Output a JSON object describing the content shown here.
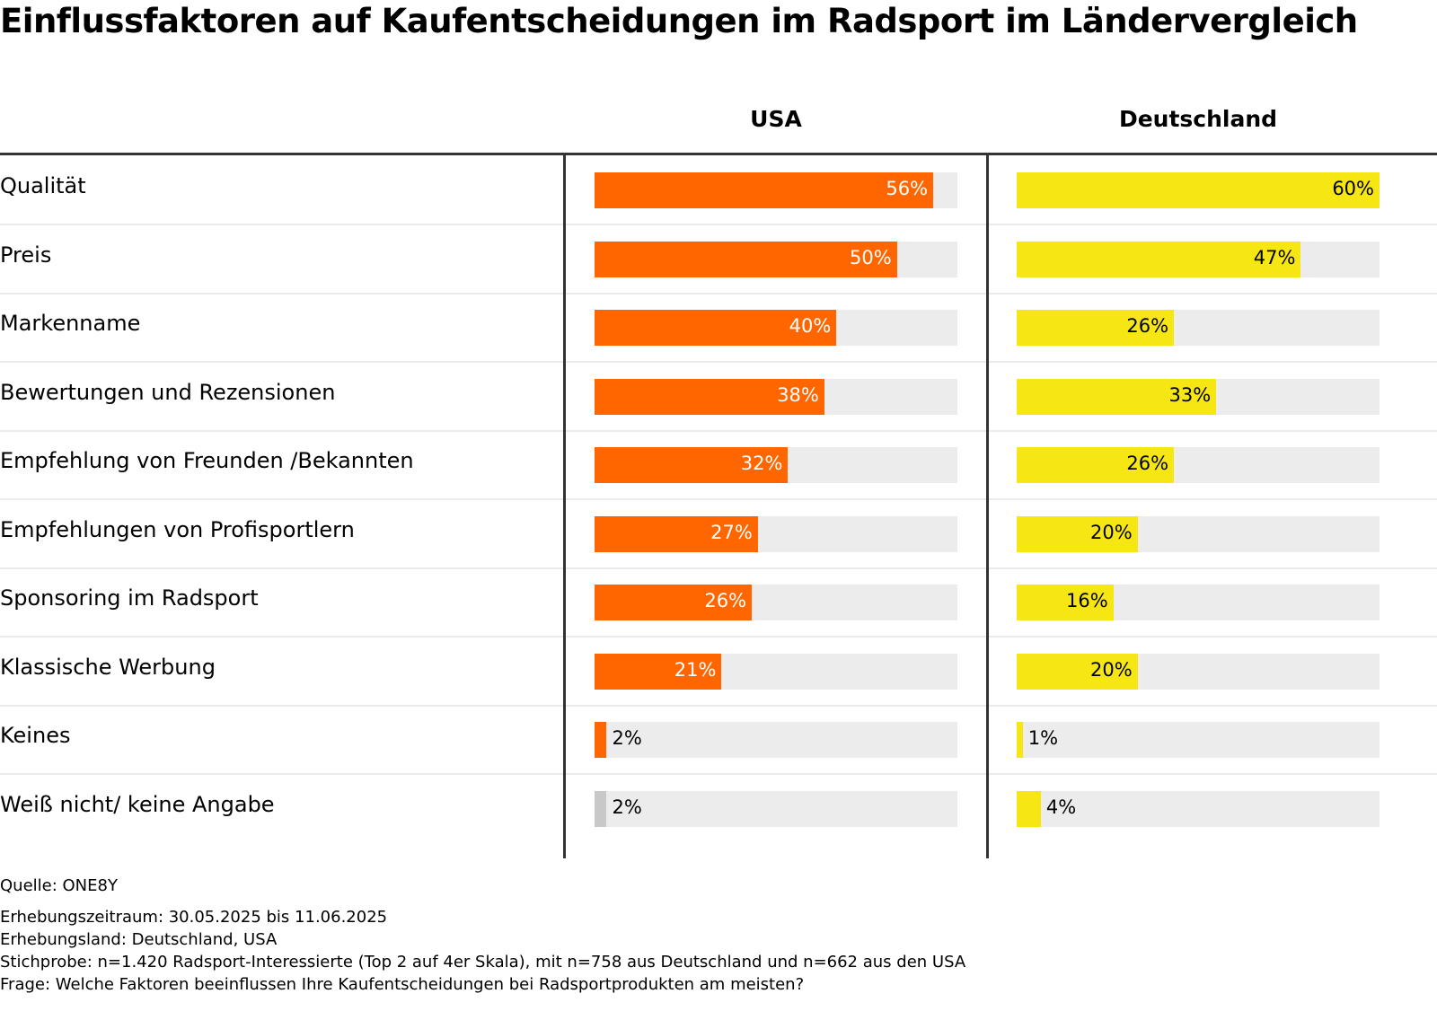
{
  "chart_data": {
    "type": "bar",
    "title": "Einflussfaktoren auf Kaufentscheidungen im Radsport im Ländervergleich",
    "categories": [
      "Qualität",
      "Preis",
      "Markenname",
      "Bewertungen und Rezensionen",
      "Empfehlung von Freunden /Bekannten",
      "Empfehlungen von Profisportlern",
      "Sponsoring im Radsport",
      "Klassische Werbung",
      "Keines",
      "Weiß nicht/ keine Angabe"
    ],
    "series": [
      {
        "name": "USA",
        "color": "#ff6600",
        "values": [
          56,
          50,
          40,
          38,
          32,
          27,
          26,
          21,
          2,
          2
        ],
        "labels": [
          "56%",
          "50%",
          "40%",
          "38%",
          "32%",
          "27%",
          "26%",
          "21%",
          "2%",
          "2%"
        ]
      },
      {
        "name": "Deutschland",
        "color": "#f5e614",
        "values": [
          60,
          47,
          26,
          33,
          26,
          20,
          16,
          20,
          1,
          4
        ],
        "labels": [
          "60%",
          "47%",
          "26%",
          "33%",
          "26%",
          "20%",
          "16%",
          "20%",
          "1%",
          "4%"
        ]
      }
    ],
    "special_colors": {
      "Weiß nicht/ keine Angabe_USA": "#c8c8c8"
    },
    "track_max": 60,
    "unit": "%"
  },
  "footer": {
    "source": "Quelle: ONE8Y",
    "lines": [
      "Erhebungszeitraum: 30.05.2025 bis 11.06.2025",
      "Erhebungsland: Deutschland, USA",
      "Stichprobe: n=1.420 Radsport-Interessierte (Top 2 auf 4er Skala), mit n=758 aus Deutschland und n=662 aus den USA",
      "Frage: Welche Faktoren beeinflussen Ihre Kaufentscheidungen bei Radsportprodukten am meisten?"
    ]
  }
}
